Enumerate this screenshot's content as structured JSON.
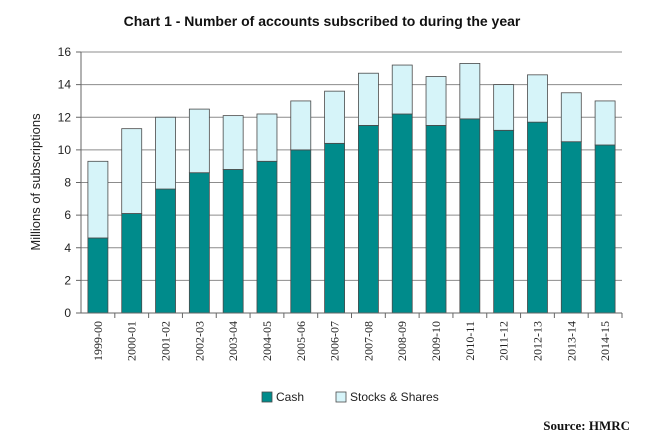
{
  "chart_data": {
    "type": "bar",
    "stacked": true,
    "title": "Chart 1 - Number of accounts subscribed to during the year",
    "xlabel": "",
    "ylabel": "Millions of subscriptions",
    "ylim": [
      0,
      16
    ],
    "yticks": [
      "0",
      "2",
      "4",
      "6",
      "8",
      "10",
      "12",
      "14",
      "16"
    ],
    "grid": true,
    "legend_position": "bottom",
    "categories": [
      "1999-00",
      "2000-01",
      "2001-02",
      "2002-03",
      "2003-04",
      "2004-05",
      "2005-06",
      "2006-07",
      "2007-08",
      "2008-09",
      "2009-10",
      "2010-11",
      "2011-12",
      "2012-13",
      "2013-14",
      "2014-15"
    ],
    "series": [
      {
        "name": "Cash",
        "color": "#008B8B",
        "values": [
          4.6,
          6.1,
          7.6,
          8.6,
          8.8,
          9.3,
          10.0,
          10.4,
          11.5,
          12.2,
          11.5,
          11.9,
          11.2,
          11.7,
          10.5,
          10.3
        ]
      },
      {
        "name": "Stocks & Shares",
        "color": "#D6F4F9",
        "values": [
          4.7,
          5.2,
          4.4,
          3.9,
          3.3,
          2.9,
          3.0,
          3.2,
          3.2,
          3.0,
          3.0,
          3.4,
          2.8,
          2.9,
          3.0,
          2.7
        ]
      }
    ]
  },
  "source": "Source: HMRC"
}
